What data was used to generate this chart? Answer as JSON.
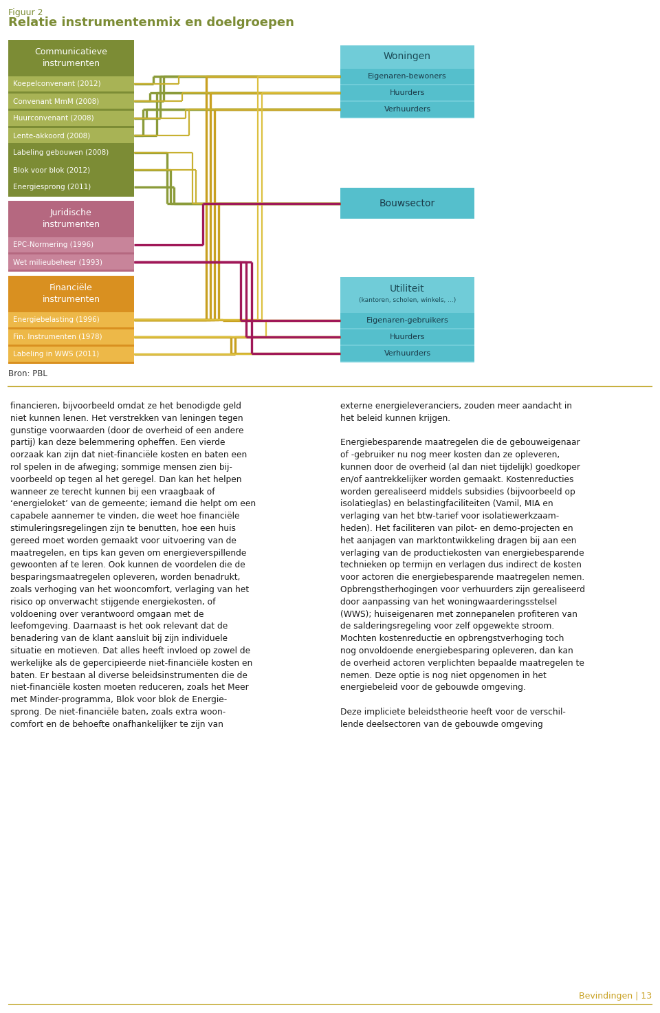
{
  "title_small": "Figuur 2",
  "title_large": "Relatie instrumentenmix en doelgroepen",
  "source": "Bron: PBL",
  "colors": {
    "comm_bg": "#7C8C35",
    "comm_item": "#A8B355",
    "comm_item_dark": "#7C8C35",
    "jur_bg": "#B56880",
    "jur_item": "#C8849A",
    "fin_bg": "#D99020",
    "fin_item": "#EDB848",
    "right_header": "#70CCD8",
    "right_sub": "#55BFCC",
    "line_olive": "#8B9B3A",
    "line_gold": "#C8B030",
    "line_jur": "#A01858",
    "line_fin_outer": "#C8A020",
    "line_fin_inner": "#DCC040",
    "title_color": "#7C8C35",
    "separator": "#C8B040"
  },
  "comm_instruments": {
    "header": "Communicatieve\ninstrumenten",
    "items": [
      "Koepelconvenant (2012)",
      "Convenant MmM (2008)",
      "Huurconvenant (2008)",
      "Lente-akkoord (2008)",
      "Labeling gebouwen (2008)",
      "Blok voor blok (2012)",
      "Energiesprong (2011)"
    ]
  },
  "jur_instruments": {
    "header": "Juridische\ninstrumenten",
    "items": [
      "EPC-Normering (1996)",
      "Wet milieubeheer (1993)"
    ]
  },
  "fin_instruments": {
    "header": "Financiële\ninstrumenten",
    "items": [
      "Energiebelasting (1996)",
      "Fin. Instrumenten (1978)",
      "Labeling in WWS (2011)"
    ]
  },
  "woning": {
    "header": "Woningen",
    "subs": [
      "Eigenaren-bewoners",
      "Huurders",
      "Verhuurders"
    ]
  },
  "bouw": {
    "header": "Bouwsector"
  },
  "util": {
    "header": "Utiliteit",
    "subheader": "(kantoren, scholen, winkels, ...)",
    "subs": [
      "Eigenaren-gebruikers",
      "Huurders",
      "Verhuurders"
    ]
  },
  "footer_text": "Bevindingen | 13"
}
